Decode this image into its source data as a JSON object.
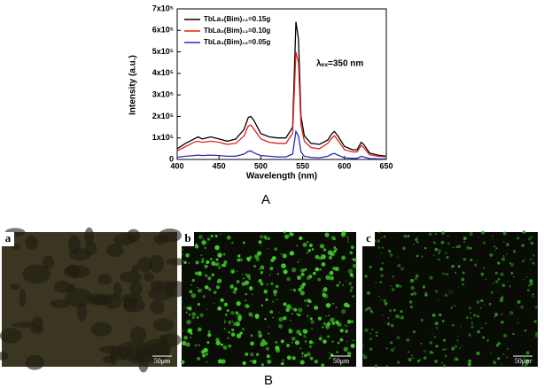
{
  "chart_data": {
    "type": "line",
    "xlabel": "Wavelength (nm)",
    "ylabel": "Intensity (a.u.)",
    "annotation": "λₑₓ=350 nm",
    "x": [
      400,
      410,
      420,
      425,
      430,
      440,
      450,
      460,
      470,
      480,
      485,
      488,
      492,
      500,
      510,
      520,
      530,
      538,
      542,
      545,
      548,
      552,
      560,
      570,
      580,
      585,
      588,
      592,
      600,
      610,
      615,
      620,
      623,
      630,
      640,
      650
    ],
    "series": [
      {
        "name": "TbLa₃(Bim)₁₂=0.15g",
        "color": "#000000",
        "values": [
          50000,
          75000,
          95000,
          105000,
          95000,
          105000,
          95000,
          85000,
          95000,
          140000,
          195000,
          200000,
          180000,
          120000,
          105000,
          100000,
          100000,
          150000,
          640000,
          560000,
          200000,
          110000,
          75000,
          70000,
          90000,
          120000,
          130000,
          110000,
          60000,
          45000,
          45000,
          80000,
          70000,
          30000,
          20000,
          15000
        ]
      },
      {
        "name": "TbLa₃(Bim)₁₂=0.10g",
        "color": "#e0201c",
        "values": [
          40000,
          60000,
          80000,
          85000,
          80000,
          85000,
          80000,
          70000,
          75000,
          110000,
          155000,
          160000,
          140000,
          95000,
          80000,
          75000,
          75000,
          120000,
          500000,
          450000,
          160000,
          85000,
          55000,
          50000,
          75000,
          100000,
          110000,
          90000,
          45000,
          35000,
          35000,
          65000,
          55000,
          22000,
          15000,
          12000
        ]
      },
      {
        "name": "TbLa₃(Bim)₁₂=0.05g",
        "color": "#2a2ab8",
        "values": [
          10000,
          15000,
          18000,
          20000,
          18000,
          20000,
          18000,
          15000,
          15000,
          25000,
          38000,
          40000,
          30000,
          18000,
          15000,
          12000,
          12000,
          25000,
          130000,
          110000,
          35000,
          15000,
          10000,
          8000,
          15000,
          25000,
          28000,
          20000,
          8000,
          5000,
          5000,
          15000,
          12000,
          4000,
          3000,
          2000
        ]
      }
    ],
    "xlim": [
      400,
      650
    ],
    "xticks": [
      400,
      450,
      500,
      550,
      600,
      650
    ],
    "ylim": [
      0,
      700000
    ],
    "yticks": [
      0,
      {
        "value": 100000,
        "label": "1x10⁵"
      },
      {
        "value": 200000,
        "label": "2x10⁵"
      },
      {
        "value": 300000,
        "label": "3x10⁵"
      },
      {
        "value": 400000,
        "label": "4x10⁵"
      },
      {
        "value": 500000,
        "label": "5x10⁵"
      },
      {
        "value": 600000,
        "label": "6x10⁵"
      },
      {
        "value": 700000,
        "label": "7x10⁵"
      }
    ],
    "legend": "upper-left"
  },
  "figure": {
    "panel_a": "A",
    "panel_b": "B",
    "images": [
      {
        "label": "a",
        "scale": "50μm"
      },
      {
        "label": "b",
        "scale": "50μm"
      },
      {
        "label": "c",
        "scale": "50μm"
      }
    ]
  }
}
